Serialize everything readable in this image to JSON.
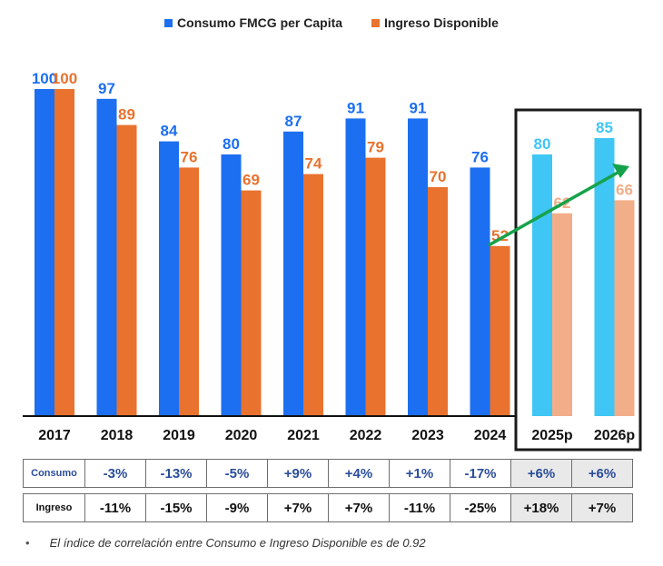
{
  "legend": {
    "consumo": "Consumo FMCG per Capita",
    "ingreso": "Ingreso Disponible"
  },
  "colors": {
    "consumo": "#1c6ff0",
    "ingreso": "#e8722e",
    "consumo_proj": "#3fc6f4",
    "ingreso_proj": "#f2ae88",
    "trend": "#16a24a"
  },
  "chart_data": {
    "type": "bar",
    "categories": [
      "2017",
      "2018",
      "2019",
      "2020",
      "2021",
      "2022",
      "2023",
      "2024",
      "2025p",
      "2026p"
    ],
    "projected": [
      false,
      false,
      false,
      false,
      false,
      false,
      false,
      false,
      true,
      true
    ],
    "series": [
      {
        "name": "Consumo FMCG per Capita",
        "values": [
          100,
          97,
          84,
          80,
          87,
          91,
          91,
          76,
          80,
          85
        ]
      },
      {
        "name": "Ingreso Disponible",
        "values": [
          100,
          89,
          76,
          69,
          74,
          79,
          70,
          52,
          62,
          66
        ]
      }
    ],
    "ylim": [
      0,
      100
    ],
    "grid": false,
    "legend_position": "top-center",
    "annotation": "projection box around 2025p and 2026p with green upward trend arrow"
  },
  "table": {
    "consumo_label": "Consumo",
    "ingreso_label": "Ingreso",
    "consumo": [
      "-3%",
      "-13%",
      "-5%",
      "+9%",
      "+4%",
      "+1%",
      "-17%",
      "+6%",
      "+6%"
    ],
    "ingreso": [
      "-11%",
      "-15%",
      "-9%",
      "+7%",
      "+7%",
      "-11%",
      "-25%",
      "+18%",
      "+7%"
    ]
  },
  "footnote": {
    "bullet": "•",
    "text": "El índice de correlación entre Consumo e Ingreso Disponible es de 0.92"
  }
}
